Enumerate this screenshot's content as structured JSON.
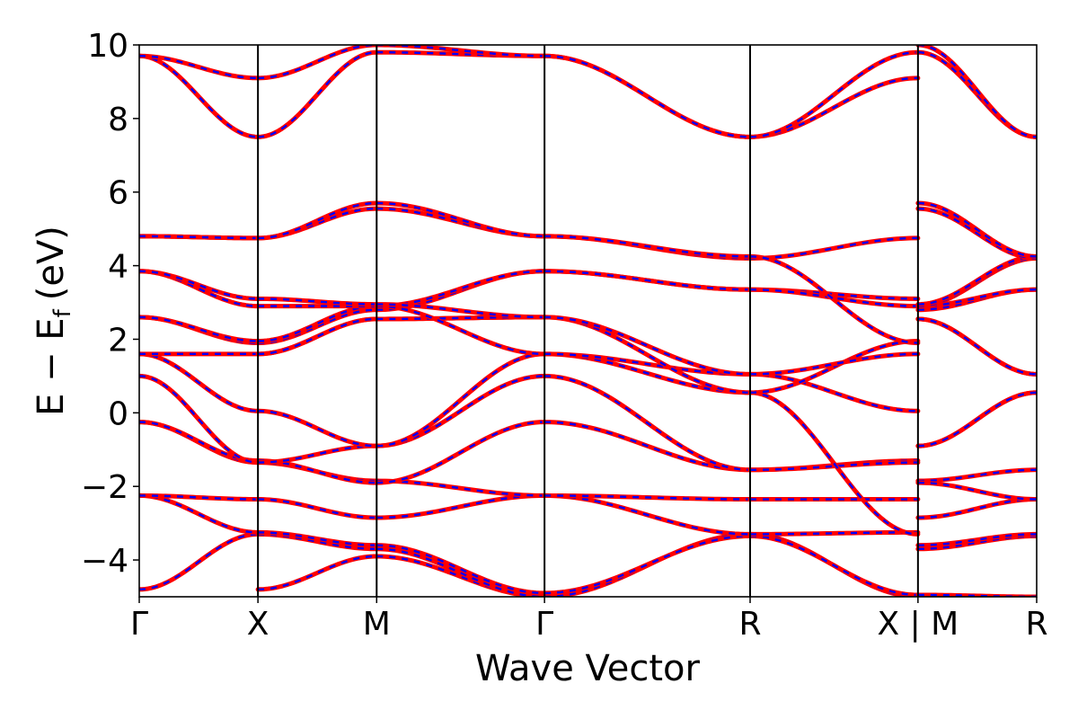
{
  "chart_data": {
    "type": "line",
    "title": "",
    "xlabel": "Wave Vector",
    "ylabel": "E − E_f (eV)",
    "ylabel_main": "E − E",
    "ylabel_sub": "f",
    "ylabel_unit": "(eV)",
    "ylim": [
      -5,
      10
    ],
    "yticks": [
      -4,
      -2,
      0,
      2,
      4,
      6,
      8,
      10
    ],
    "ytick_labels": [
      "−4",
      "−2",
      "0",
      "2",
      "4",
      "6",
      "8",
      "10"
    ],
    "kpath": [
      {
        "label": "Γ",
        "position": 0.0
      },
      {
        "label": "X",
        "position": 0.5
      },
      {
        "label": "M",
        "position": 1.0
      },
      {
        "label": "Γ",
        "position": 1.707
      },
      {
        "label": "R",
        "position": 2.573
      },
      {
        "label": "X | M",
        "position": 3.28
      },
      {
        "label": "R",
        "position": 3.78
      }
    ],
    "xlim": [
      0.0,
      3.78
    ],
    "colors": {
      "band_solid": "#ff0000",
      "band_dashed": "#0000ff",
      "kline": "#000000"
    },
    "grid": false,
    "series_style": "solid red bands overlaid with dashed blue bands (identical values)",
    "segments": [
      {
        "k": [
          0.0,
          0.5
        ],
        "bands": [
          [
            -4.8,
            -3.3
          ],
          [
            -2.25,
            -3.25
          ],
          [
            -2.25,
            -2.35
          ],
          [
            -0.25,
            -1.35
          ],
          [
            -0.25,
            -1.3
          ],
          [
            1.0,
            -1.35
          ],
          [
            1.6,
            0.05
          ],
          [
            1.6,
            1.6
          ],
          [
            2.6,
            1.9
          ],
          [
            2.6,
            1.95
          ],
          [
            3.85,
            2.9
          ],
          [
            3.85,
            3.1
          ],
          [
            4.8,
            4.75
          ],
          [
            4.8,
            4.75
          ],
          [
            9.7,
            7.5
          ],
          [
            9.7,
            9.1
          ]
        ]
      },
      {
        "k": [
          0.5,
          1.0
        ],
        "bands": [
          [
            -4.8,
            -3.9
          ],
          [
            -3.3,
            -3.7
          ],
          [
            -3.25,
            -3.6
          ],
          [
            -2.35,
            -2.85
          ],
          [
            -1.35,
            -1.85
          ],
          [
            -1.3,
            -1.9
          ],
          [
            -1.35,
            -0.9
          ],
          [
            0.05,
            -0.9
          ],
          [
            1.6,
            2.55
          ],
          [
            1.6,
            2.55
          ],
          [
            1.9,
            2.8
          ],
          [
            1.95,
            2.9
          ],
          [
            2.9,
            2.9
          ],
          [
            3.1,
            2.95
          ],
          [
            4.75,
            5.55
          ],
          [
            4.75,
            5.7
          ],
          [
            7.5,
            9.8
          ],
          [
            9.1,
            10.0
          ]
        ]
      },
      {
        "k": [
          1.0,
          1.707
        ],
        "bands": [
          [
            -3.9,
            -5.0
          ],
          [
            -3.7,
            -5.0
          ],
          [
            -3.6,
            -4.9
          ],
          [
            -2.85,
            -2.25
          ],
          [
            -1.85,
            -2.25
          ],
          [
            -1.9,
            -0.25
          ],
          [
            -0.9,
            1.0
          ],
          [
            -0.9,
            1.6
          ],
          [
            2.55,
            2.6
          ],
          [
            2.55,
            2.6
          ],
          [
            2.8,
            3.85
          ],
          [
            2.9,
            3.85
          ],
          [
            2.9,
            1.6
          ],
          [
            2.95,
            2.6
          ],
          [
            5.55,
            4.8
          ],
          [
            5.7,
            4.8
          ],
          [
            9.8,
            9.7
          ],
          [
            10.0,
            9.7
          ]
        ]
      },
      {
        "k": [
          1.707,
          2.573
        ],
        "bands": [
          [
            -5.0,
            -3.3
          ],
          [
            -4.9,
            -3.35
          ],
          [
            -2.25,
            -3.3
          ],
          [
            -2.25,
            -2.35
          ],
          [
            -0.25,
            -1.55
          ],
          [
            1.0,
            -1.55
          ],
          [
            1.6,
            0.55
          ],
          [
            1.6,
            1.05
          ],
          [
            2.6,
            0.55
          ],
          [
            2.6,
            1.05
          ],
          [
            3.85,
            3.35
          ],
          [
            3.85,
            3.35
          ],
          [
            4.8,
            4.2
          ],
          [
            4.8,
            4.25
          ],
          [
            9.7,
            7.5
          ],
          [
            9.7,
            7.5
          ]
        ]
      },
      {
        "k": [
          2.573,
          3.28
        ],
        "bands": [
          [
            -3.3,
            -5.0
          ],
          [
            -3.35,
            -4.95
          ],
          [
            -3.3,
            -3.25
          ],
          [
            -2.35,
            -2.35
          ],
          [
            -1.55,
            -1.3
          ],
          [
            -1.55,
            -1.35
          ],
          [
            0.55,
            -3.3
          ],
          [
            1.05,
            0.05
          ],
          [
            0.55,
            1.95
          ],
          [
            1.05,
            1.6
          ],
          [
            3.35,
            3.1
          ],
          [
            3.35,
            2.9
          ],
          [
            4.2,
            4.75
          ],
          [
            4.25,
            1.9
          ],
          [
            7.5,
            9.1
          ],
          [
            7.5,
            9.8
          ]
        ]
      },
      {
        "k": [
          3.28,
          3.78
        ],
        "bands": [
          [
            -4.95,
            -5.0
          ],
          [
            -3.7,
            -3.35
          ],
          [
            -3.6,
            -3.3
          ],
          [
            -2.85,
            -2.35
          ],
          [
            -1.85,
            -1.55
          ],
          [
            -1.9,
            -2.35
          ],
          [
            -0.9,
            0.55
          ],
          [
            -0.9,
            0.55
          ],
          [
            2.55,
            1.05
          ],
          [
            2.55,
            1.05
          ],
          [
            2.8,
            3.35
          ],
          [
            2.9,
            3.35
          ],
          [
            2.9,
            4.2
          ],
          [
            2.95,
            4.25
          ],
          [
            5.55,
            4.2
          ],
          [
            5.7,
            4.25
          ],
          [
            9.8,
            7.5
          ],
          [
            10.0,
            7.5
          ]
        ]
      }
    ]
  }
}
